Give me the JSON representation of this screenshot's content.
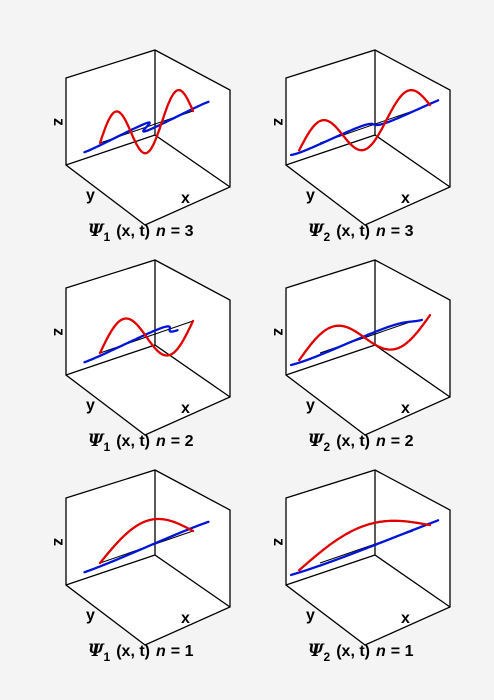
{
  "panels": [
    {
      "psi_symbol": "Ψ",
      "psi_index": "1",
      "args": "(x, t)",
      "n_var": "n",
      "n_eq": "= 3",
      "n": 3,
      "wave_type": 1,
      "xlabel": "x",
      "ylabel": "y",
      "zlabel": "z"
    },
    {
      "psi_symbol": "Ψ",
      "psi_index": "2",
      "args": "(x, t)",
      "n_var": "n",
      "n_eq": "= 3",
      "n": 3,
      "wave_type": 2,
      "xlabel": "x",
      "ylabel": "y",
      "zlabel": "z"
    },
    {
      "psi_symbol": "Ψ",
      "psi_index": "1",
      "args": "(x, t)",
      "n_var": "n",
      "n_eq": "= 2",
      "n": 2,
      "wave_type": 1,
      "xlabel": "x",
      "ylabel": "y",
      "zlabel": "z"
    },
    {
      "psi_symbol": "Ψ",
      "psi_index": "2",
      "args": "(x, t)",
      "n_var": "n",
      "n_eq": "= 2",
      "n": 2,
      "wave_type": 2,
      "xlabel": "x",
      "ylabel": "y",
      "zlabel": "z"
    },
    {
      "psi_symbol": "Ψ",
      "psi_index": "1",
      "args": "(x, t)",
      "n_var": "n",
      "n_eq": "= 1",
      "n": 1,
      "wave_type": 1,
      "xlabel": "x",
      "ylabel": "y",
      "zlabel": "z"
    },
    {
      "psi_symbol": "Ψ",
      "psi_index": "2",
      "args": "(x, t)",
      "n_var": "n",
      "n_eq": "= 1",
      "n": 1,
      "wave_type": 2,
      "xlabel": "x",
      "ylabel": "y",
      "zlabel": "z"
    }
  ],
  "colors": {
    "real_part": "#e00000",
    "imag_part": "#0014d8",
    "axis": "#000000"
  }
}
